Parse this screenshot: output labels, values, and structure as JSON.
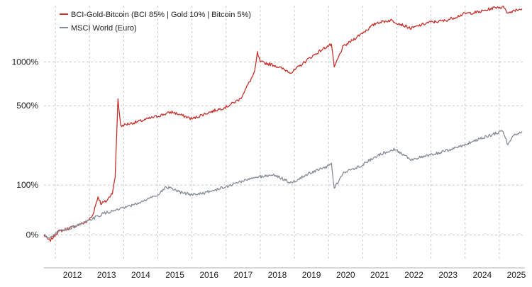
{
  "chart_data": {
    "type": "line",
    "title": "",
    "xlabel": "",
    "ylabel": "",
    "y_scale": "log (1 + return)",
    "ylim": [
      -0.3,
      23
    ],
    "xlim": [
      "2011-09",
      "2025-10"
    ],
    "grid": true,
    "legend_position": "top-left",
    "y_ticks": [
      {
        "value": 0,
        "label": "0%"
      },
      {
        "value": 1,
        "label": "100%"
      },
      {
        "value": 5,
        "label": "500%"
      },
      {
        "value": 10,
        "label": "1000%"
      }
    ],
    "x_ticks": [
      "2012",
      "2013",
      "2014",
      "2015",
      "2016",
      "2017",
      "2018",
      "2019",
      "2020",
      "2021",
      "2022",
      "2023",
      "2024",
      "2025"
    ],
    "colors": {
      "BCI-Gold-Bitcoin": "#c8302a",
      "MSCI World": "#868c96",
      "grid": "#c8c8c8"
    },
    "series": [
      {
        "name": "BCI-Gold-Bitcoin (BCI 85% | Gold 10% | Bitcoin 5%)",
        "color": "#c8302a",
        "x": [
          "2011-09",
          "2011-11",
          "2012-02",
          "2012-06",
          "2012-12",
          "2013-02",
          "2013-04",
          "2013-05",
          "2013-07",
          "2013-09",
          "2013-10",
          "2013-11",
          "2013-12",
          "2014-01",
          "2014-06",
          "2015-01",
          "2015-06",
          "2016-01",
          "2016-06",
          "2017-01",
          "2017-06",
          "2017-11",
          "2017-12",
          "2018-01",
          "2018-06",
          "2018-12",
          "2019-06",
          "2019-12",
          "2020-02",
          "2020-03",
          "2020-06",
          "2021-01",
          "2021-06",
          "2021-11",
          "2022-06",
          "2022-12",
          "2023-06",
          "2024-01",
          "2024-06",
          "2024-12",
          "2025-03",
          "2025-04",
          "2025-06",
          "2025-09"
        ],
        "values": [
          0.0,
          -0.08,
          0.05,
          0.1,
          0.2,
          0.3,
          0.7,
          0.55,
          0.6,
          0.8,
          1.2,
          5.6,
          3.5,
          3.6,
          3.8,
          4.2,
          4.5,
          4.0,
          4.4,
          4.9,
          5.6,
          8.5,
          11.5,
          10.0,
          9.5,
          8.5,
          10.5,
          12.5,
          13.0,
          9.2,
          12.5,
          15.5,
          18.0,
          18.6,
          16.5,
          18.0,
          18.5,
          20.5,
          21.0,
          22.5,
          22.4,
          20.5,
          21.5,
          22.0
        ]
      },
      {
        "name": "MSCI World (Euro)",
        "color": "#868c96",
        "x": [
          "2011-09",
          "2011-11",
          "2012-02",
          "2012-06",
          "2012-12",
          "2013-06",
          "2014-01",
          "2014-06",
          "2015-01",
          "2015-04",
          "2015-09",
          "2016-01",
          "2016-06",
          "2017-01",
          "2017-06",
          "2018-01",
          "2018-06",
          "2018-12",
          "2019-06",
          "2019-12",
          "2020-02",
          "2020-03",
          "2020-06",
          "2021-01",
          "2021-06",
          "2021-12",
          "2022-06",
          "2022-12",
          "2023-06",
          "2024-01",
          "2024-06",
          "2024-12",
          "2025-02",
          "2025-04",
          "2025-06",
          "2025-09"
        ],
        "values": [
          0.0,
          -0.05,
          0.05,
          0.1,
          0.2,
          0.35,
          0.45,
          0.55,
          0.75,
          0.95,
          0.8,
          0.75,
          0.8,
          0.95,
          1.1,
          1.25,
          1.3,
          1.05,
          1.35,
          1.55,
          1.7,
          0.9,
          1.35,
          1.65,
          2.0,
          2.3,
          1.85,
          2.0,
          2.2,
          2.5,
          2.8,
          3.1,
          3.3,
          2.5,
          3.0,
          3.2
        ]
      }
    ]
  }
}
